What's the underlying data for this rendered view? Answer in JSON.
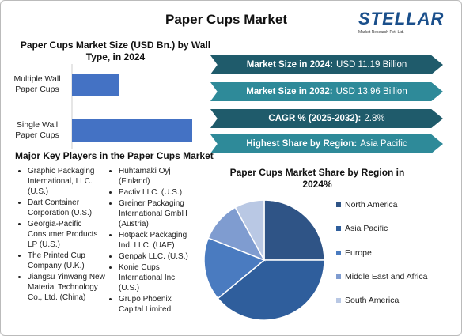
{
  "header": {
    "title": "Paper Cups Market",
    "logo": "STELLAR",
    "logo_sub": "Market Research Pvt. Ltd."
  },
  "highlights": [
    {
      "label": "Market Size in 2024:",
      "value": "USD 11.19 Billion"
    },
    {
      "label": "Market Size in 2032:",
      "value": "USD 13.96 Billion"
    },
    {
      "label": "CAGR % (2025-2032):",
      "value": "2.8%"
    },
    {
      "label": "Highest Share by Region:",
      "value": "Asia Pacific"
    }
  ],
  "key_players": {
    "title": "Major Key Players in the Paper Cups Market",
    "columns": [
      [
        "Graphic Packaging International, LLC. (U.S.)",
        "Dart Container Corporation (U.S.)",
        "Georgia-Pacific Consumer Products LP (U.S.)",
        "The Printed Cup Company (U.K.)",
        "Jiangsu Yinwang New Material Technology Co., Ltd. (China)"
      ],
      [
        "Huhtamaki Oyj (Finland)",
        "Pactiv LLC. (U.S.)",
        "Greiner Packaging International GmbH (Austria)",
        "Hotpack Packaging Ind. LLC. (UAE)",
        "Genpak LLC. (U.S.)",
        "Konie Cups International Inc. (U.S.)",
        "Grupo Phoenix Capital Limited"
      ]
    ]
  },
  "chart_data": [
    {
      "type": "bar",
      "orientation": "horizontal",
      "title": "Paper Cups Market Size (USD Bn.) by Wall Type, in 2024",
      "categories": [
        "Multiple Wall Paper Cups",
        "Single Wall Paper Cups"
      ],
      "values": [
        3.13,
        8.06
      ],
      "color": "#4472c4"
    },
    {
      "type": "pie",
      "title": "Paper Cups Market Share by Region in 2024%",
      "categories": [
        "North America",
        "Asia Pacific",
        "Europe",
        "Middle East and Africa",
        "South America"
      ],
      "values": [
        25,
        39,
        17,
        11,
        8
      ],
      "colors": [
        "#2f5486",
        "#2f5e9c",
        "#4a7bc0",
        "#7f9cd0",
        "#b9c8e4"
      ]
    }
  ]
}
